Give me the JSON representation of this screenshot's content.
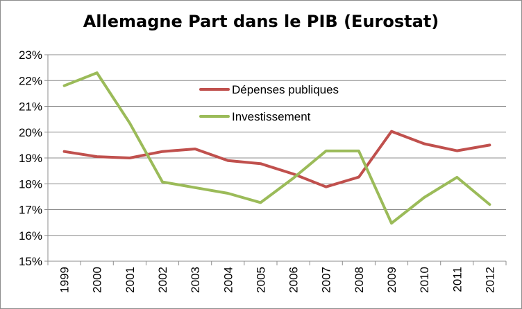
{
  "chart_data": {
    "type": "line",
    "title": "Allemagne Part dans le PIB (Eurostat)",
    "xlabel": "",
    "ylabel": "",
    "categories": [
      "1999",
      "2000",
      "2001",
      "2002",
      "2003",
      "2004",
      "2005",
      "2006",
      "2007",
      "2008",
      "2009",
      "2010",
      "2011",
      "2012"
    ],
    "ylim": [
      0.15,
      0.23
    ],
    "y_ticks": [
      "15%",
      "16%",
      "17%",
      "18%",
      "19%",
      "20%",
      "21%",
      "22%",
      "23%"
    ],
    "y_tick_values": [
      0.15,
      0.16,
      0.17,
      0.18,
      0.19,
      0.2,
      0.21,
      0.22,
      0.23
    ],
    "grid": "horizontal",
    "legend_position": "top-center",
    "series": [
      {
        "name": "Dépenses publiques",
        "color": "#c0504d",
        "values": [
          0.1925,
          0.1905,
          0.19,
          0.1925,
          0.1935,
          0.189,
          0.1878,
          0.1838,
          0.1788,
          0.1826,
          0.2003,
          0.1955,
          0.1928,
          0.195
        ]
      },
      {
        "name": "Investissement",
        "color": "#9bbb59",
        "values": [
          0.218,
          0.223,
          0.2035,
          0.1807,
          0.1785,
          0.1763,
          0.1727,
          0.1822,
          0.1927,
          0.1927,
          0.1647,
          0.1747,
          0.1825,
          0.172
        ]
      }
    ]
  }
}
